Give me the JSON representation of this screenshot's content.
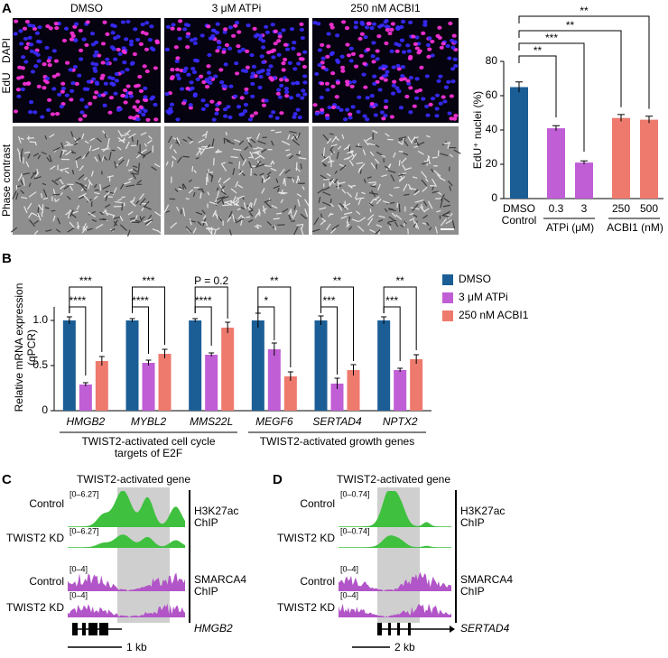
{
  "panel_labels": [
    "A",
    "B",
    "C",
    "D"
  ],
  "images": {
    "columns": [
      "DMSO",
      "3 μM ATPi",
      "250 nM ACBI1"
    ],
    "row_labels": {
      "edu": "EdU",
      "dapi": "DAPI",
      "phase": "Phase contrast"
    }
  },
  "chart_data": [
    {
      "type": "bar",
      "ylabel": "EdU⁺ nuclei (%)",
      "categories": [
        "DMSO",
        "0.3",
        "3",
        "250",
        "500"
      ],
      "control_label": "Control",
      "groups": [
        "ATPi (μM)",
        "ACBI1 (nM)"
      ],
      "values": [
        65,
        41,
        21,
        47,
        46
      ],
      "errors": [
        3,
        1.5,
        1,
        2,
        2
      ],
      "colors": [
        "#1b5e96",
        "#c05ed6",
        "#c05ed6",
        "#ee7a6e",
        "#ee7a6e"
      ],
      "annotations": [
        "**",
        "***",
        "**",
        "**"
      ],
      "ylim": [
        0,
        80
      ],
      "yticks": [
        0,
        20,
        40,
        60,
        80
      ]
    },
    {
      "type": "grouped_bar",
      "ylabel": [
        "Relative mRNA expression",
        "(qPCR)"
      ],
      "categories": [
        "HMGB2",
        "MYBL2",
        "MMS22L",
        "MEGF6",
        "SERTAD4",
        "NPTX2"
      ],
      "series": [
        {
          "name": "DMSO",
          "color": "#1b5e96",
          "values": [
            1.0,
            1.0,
            1.0,
            1.0,
            1.0,
            1.0
          ],
          "errors": [
            0.04,
            0.02,
            0.02,
            0.08,
            0.05,
            0.04
          ]
        },
        {
          "name": "3 μM ATPi",
          "color": "#c05ed6",
          "values": [
            0.29,
            0.53,
            0.62,
            0.68,
            0.3,
            0.45
          ],
          "errors": [
            0.02,
            0.03,
            0.02,
            0.07,
            0.06,
            0.02
          ]
        },
        {
          "name": "250 nM ACBI1",
          "color": "#ee7a6e",
          "values": [
            0.55,
            0.63,
            0.92,
            0.38,
            0.45,
            0.57
          ],
          "errors": [
            0.05,
            0.05,
            0.06,
            0.05,
            0.06,
            0.05
          ]
        }
      ],
      "significance": [
        [
          "****",
          "***"
        ],
        [
          "****",
          "***"
        ],
        [
          "****",
          "P = 0.2"
        ],
        [
          "*",
          "**"
        ],
        [
          "***",
          "**"
        ],
        [
          "***",
          "**"
        ]
      ],
      "gene_groups": [
        [
          "TWIST2-activated cell cycle",
          "targets of E2F"
        ],
        [
          "TWIST2-activated growth genes"
        ]
      ],
      "ylim": [
        0,
        1.45
      ],
      "yticks": [
        0,
        0.5,
        {
          "value": 1,
          "label": "1.0"
        }
      ]
    }
  ],
  "tracks": [
    {
      "title": "TWIST2-activated gene",
      "samples": [
        "Control",
        "TWIST2 KD",
        "Control",
        "TWIST2 KD"
      ],
      "ranges": [
        "[0–6.27]",
        "[0–6.27]",
        "[0–4]",
        "[0–4]"
      ],
      "assays": [
        [
          "H3K27ac",
          "ChIP"
        ],
        [
          "SMARCA4",
          "ChIP"
        ]
      ],
      "gene": "HMGB2",
      "scale": "1 kb"
    },
    {
      "title": "TWIST2-activated gene",
      "samples": [
        "Control",
        "TWIST2 KD",
        "Control",
        "TWIST2 KD"
      ],
      "ranges": [
        "[0–0.74]",
        "[0–0.74]",
        "[0–4]",
        "[0–4]"
      ],
      "assays": [
        [
          "H3K27ac",
          "ChIP"
        ],
        [
          "SMARCA4",
          "ChIP"
        ]
      ],
      "gene": "SERTAD4",
      "scale": "2 kb"
    }
  ]
}
